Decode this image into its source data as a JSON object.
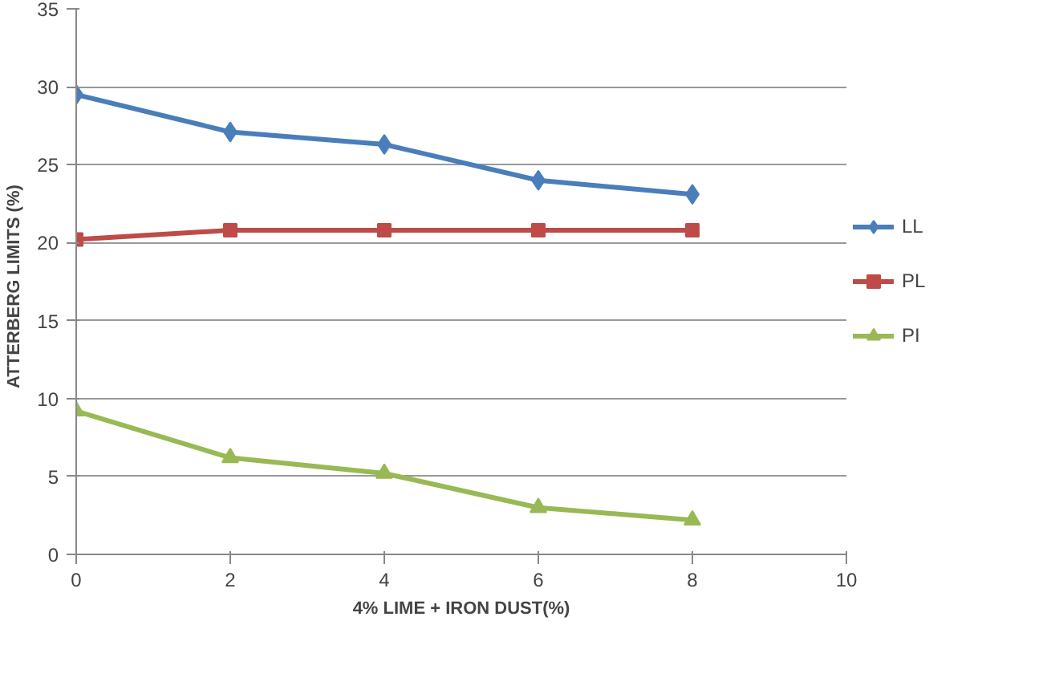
{
  "chart_data": {
    "type": "line",
    "xlabel": "4% LIME + IRON DUST(%)",
    "ylabel": "ATTERBERG  LIMITS  (%)",
    "x": [
      0,
      2,
      4,
      6,
      8
    ],
    "xlim": [
      0,
      10
    ],
    "xticks": [
      0,
      2,
      4,
      6,
      8,
      10
    ],
    "ylim": [
      0,
      35
    ],
    "yticks": [
      0,
      5,
      10,
      15,
      20,
      25,
      30,
      35
    ],
    "grid": "y",
    "legend": "right",
    "line_style": "solid",
    "series": [
      {
        "name": "LL",
        "color": "#4a7ebb",
        "marker": "diamond",
        "values": [
          29.5,
          27.1,
          26.3,
          24.0,
          23.1
        ]
      },
      {
        "name": "PL",
        "color": "#be4b48",
        "marker": "square",
        "values": [
          20.2,
          20.8,
          20.8,
          20.8,
          20.8
        ]
      },
      {
        "name": "PI",
        "color": "#98b954",
        "marker": "triangle",
        "values": [
          9.2,
          6.2,
          5.2,
          3.0,
          2.2
        ]
      }
    ]
  }
}
